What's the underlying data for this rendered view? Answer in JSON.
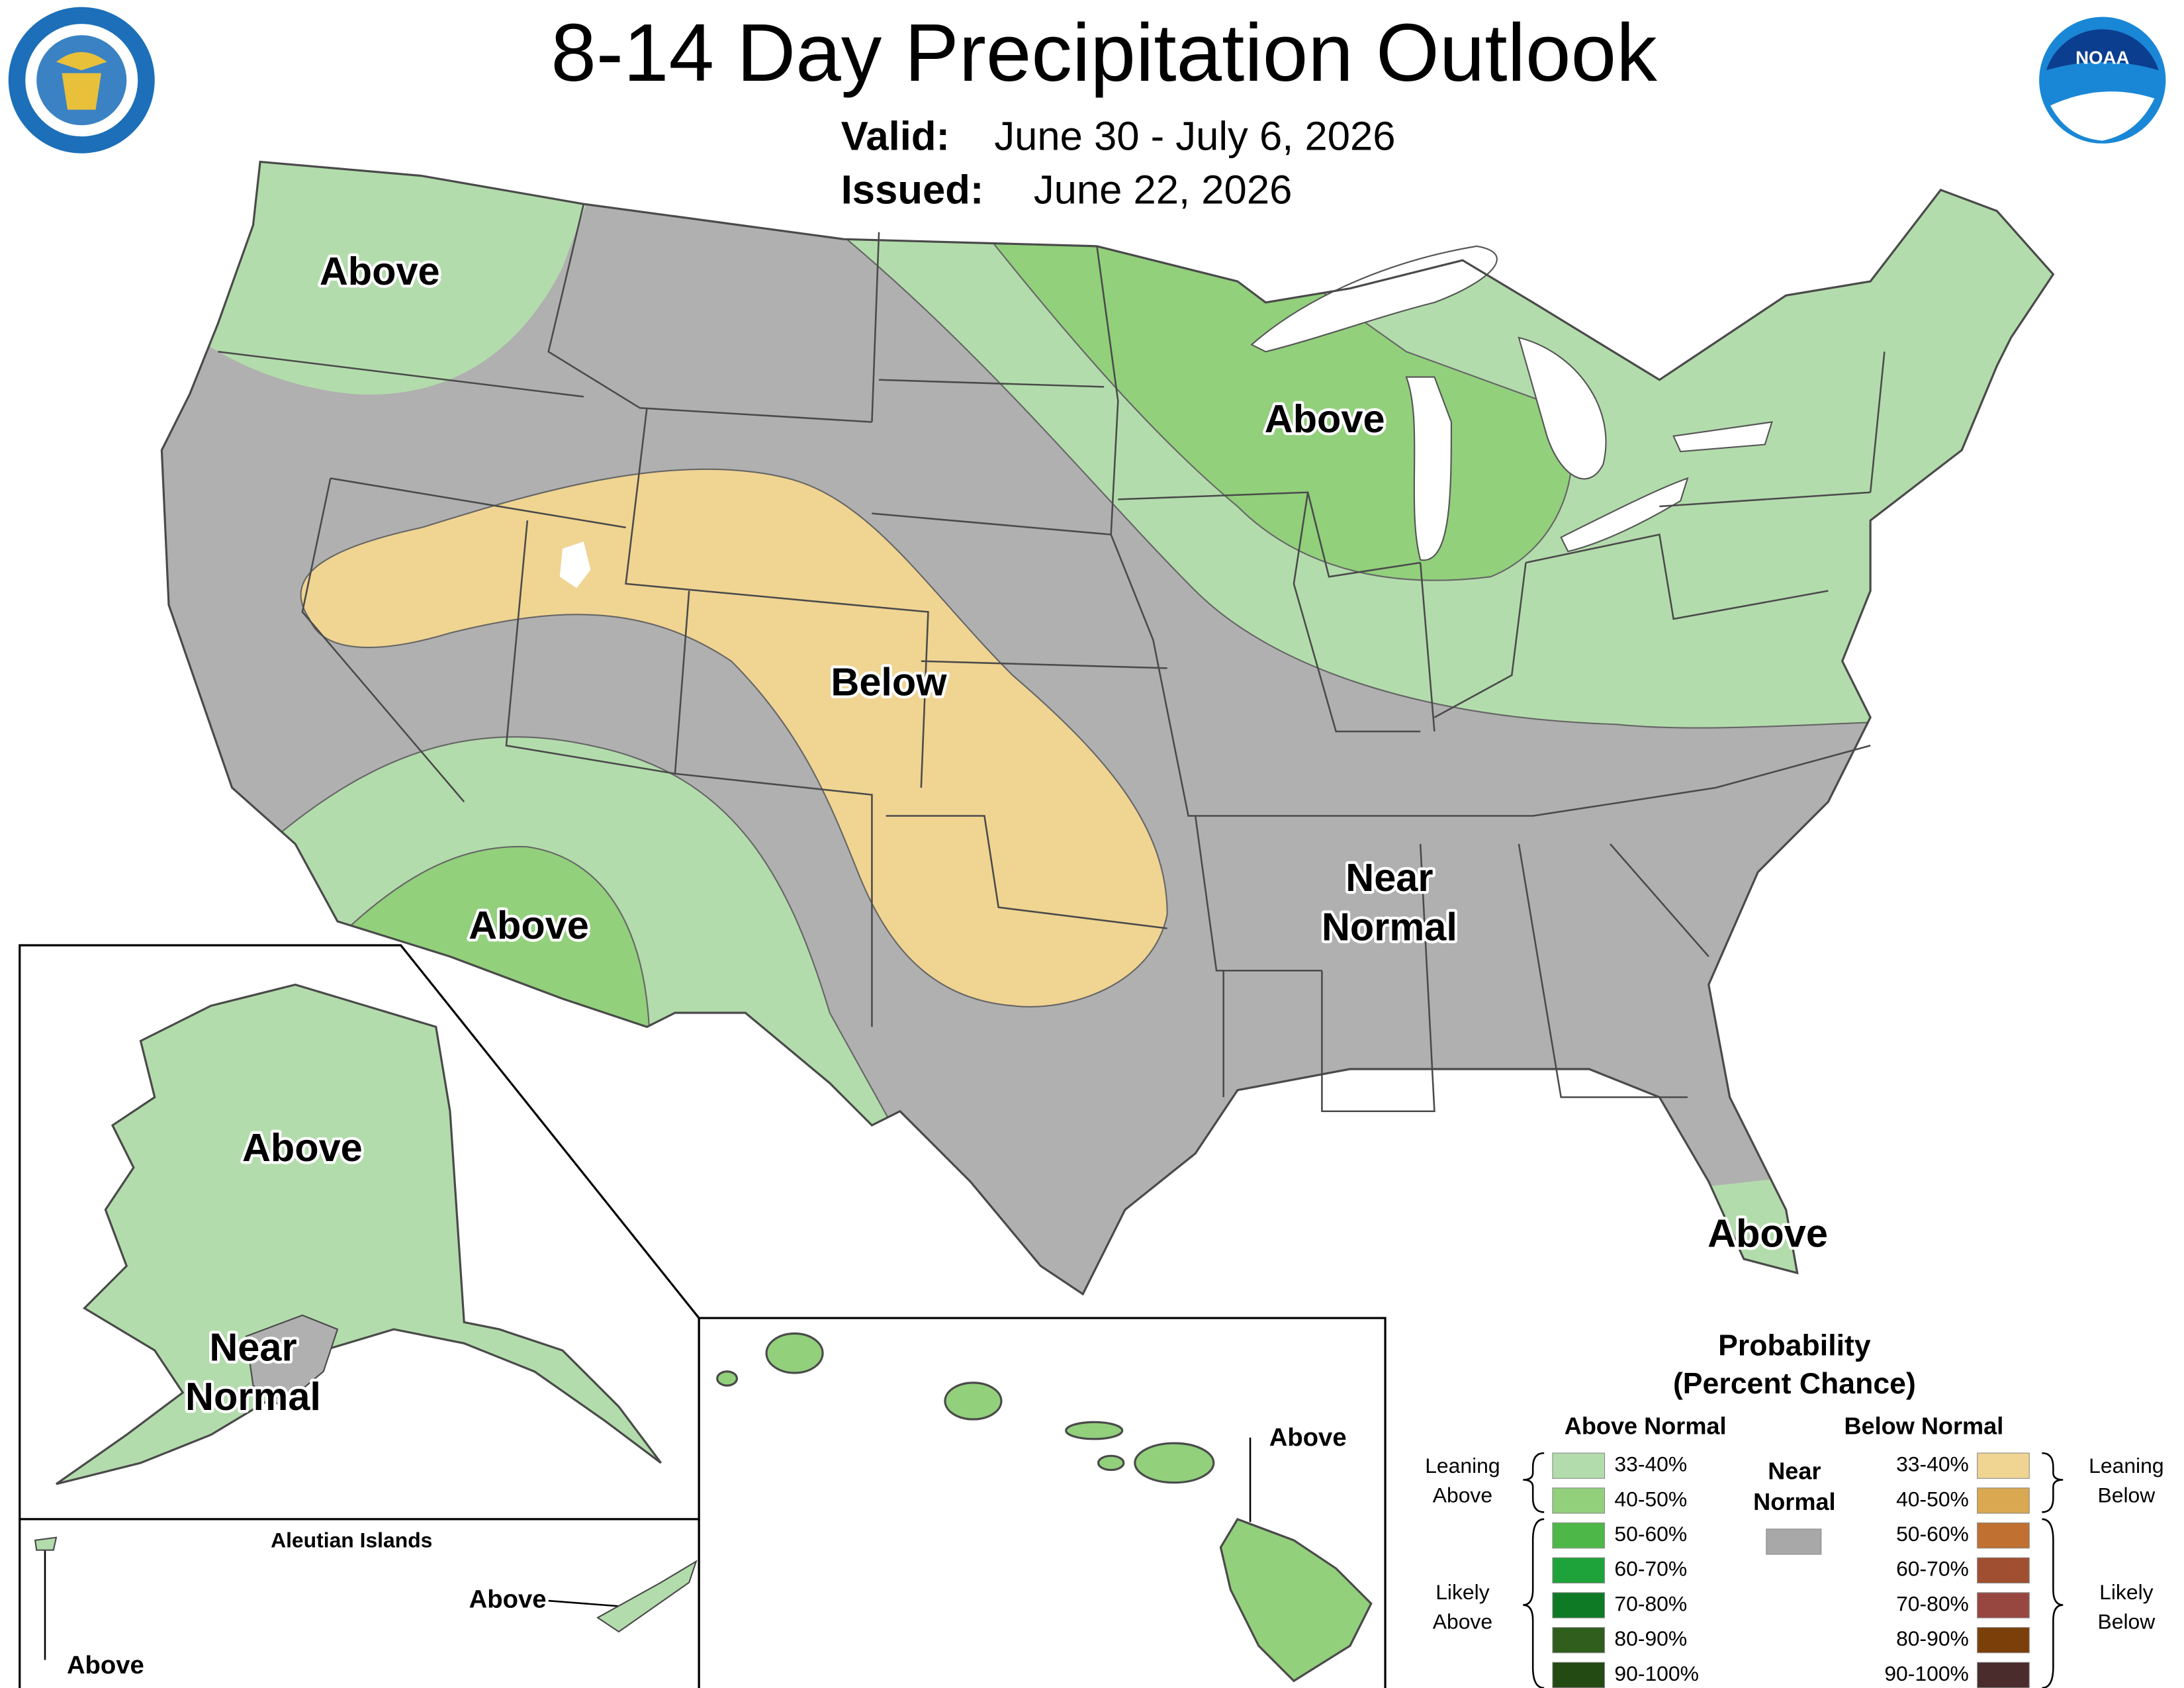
{
  "header": {
    "title": "8-14 Day Precipitation Outlook",
    "valid_label": "Valid:",
    "valid": "June 30 - July 6, 2026",
    "issued_label": "Issued:",
    "issued": "June 22, 2026",
    "noaa_logo": "NOAA"
  },
  "map": {
    "labels": [
      {
        "lines": [
          "Above"
        ]
      },
      {
        "lines": [
          "Above"
        ]
      },
      {
        "lines": [
          "Below"
        ]
      },
      {
        "lines": [
          "Near",
          "Normal"
        ]
      },
      {
        "lines": [
          "Above"
        ]
      },
      {
        "lines": [
          "Above"
        ]
      },
      {
        "lines": [
          "Above"
        ]
      },
      {
        "lines": [
          "Near",
          "Normal"
        ]
      },
      {
        "lines": [
          "Above"
        ]
      },
      {
        "lines": [
          "Above"
        ]
      },
      {
        "lines": [
          "Above"
        ]
      }
    ],
    "aleutian_title": "Aleutian Islands"
  },
  "legend": {
    "title": [
      "Probability",
      "(Percent Chance)"
    ],
    "above_heading": "Above Normal",
    "below_heading": "Below Normal",
    "above": [
      {
        "range": "33-40%",
        "color": "#b3dcac"
      },
      {
        "range": "40-50%",
        "color": "#92d07c"
      },
      {
        "range": "50-60%",
        "color": "#4db848"
      },
      {
        "range": "60-70%",
        "color": "#1ea33a"
      },
      {
        "range": "70-80%",
        "color": "#0e7a26"
      },
      {
        "range": "80-90%",
        "color": "#2f5e1d"
      },
      {
        "range": "90-100%",
        "color": "#244a13"
      }
    ],
    "below": [
      {
        "range": "33-40%",
        "color": "#f0d492"
      },
      {
        "range": "40-50%",
        "color": "#d9a850"
      },
      {
        "range": "50-60%",
        "color": "#c07030"
      },
      {
        "range": "60-70%",
        "color": "#a05030"
      },
      {
        "range": "70-80%",
        "color": "#984640"
      },
      {
        "range": "80-90%",
        "color": "#7b3f0a"
      },
      {
        "range": "90-100%",
        "color": "#4a2c2c"
      }
    ],
    "near_normal": {
      "lines": [
        "Near",
        "Normal"
      ],
      "color": "#a8a8a8"
    },
    "leaning_above": [
      "Leaning",
      "Above"
    ],
    "likely_above": [
      "Likely",
      "Above"
    ],
    "leaning_below": [
      "Leaning",
      "Below"
    ],
    "likely_below": [
      "Likely",
      "Below"
    ]
  }
}
